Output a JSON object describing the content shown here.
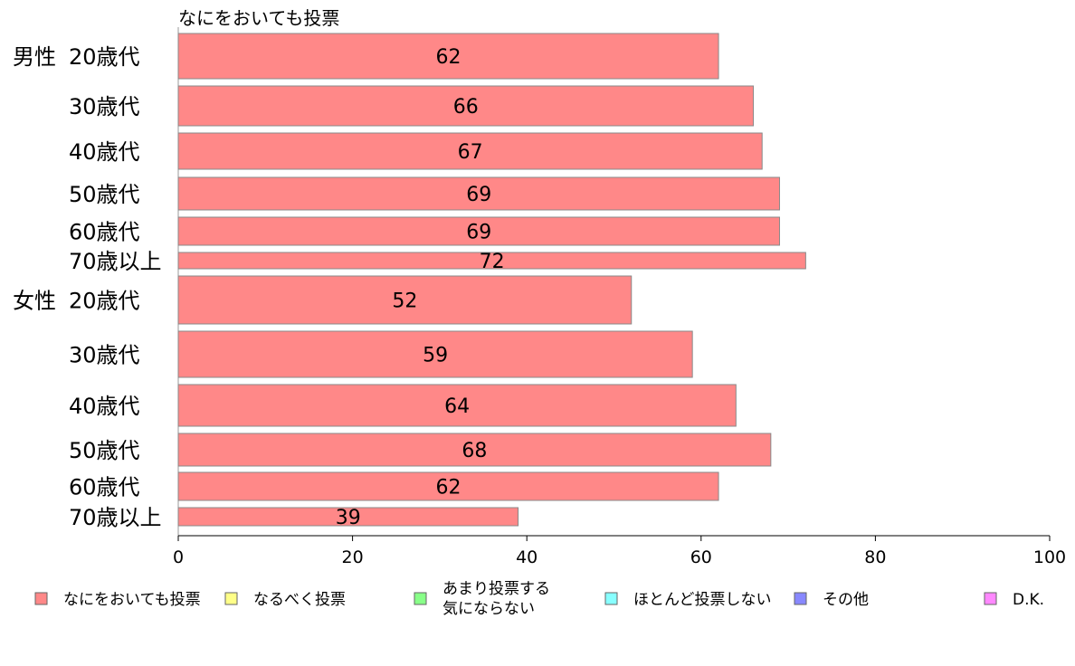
{
  "chart_data": {
    "type": "bar",
    "orientation": "horizontal",
    "title": "なにをおいても投票",
    "categories": [
      {
        "group": "男性",
        "label": "20歳代"
      },
      {
        "group": "",
        "label": "30歳代"
      },
      {
        "group": "",
        "label": "40歳代"
      },
      {
        "group": "",
        "label": "50歳代"
      },
      {
        "group": "",
        "label": "60歳代"
      },
      {
        "group": "",
        "label": "70歳以上"
      },
      {
        "group": "女性",
        "label": "20歳代"
      },
      {
        "group": "",
        "label": "30歳代"
      },
      {
        "group": "",
        "label": "40歳代"
      },
      {
        "group": "",
        "label": "50歳代"
      },
      {
        "group": "",
        "label": "60歳代"
      },
      {
        "group": "",
        "label": "70歳以上"
      }
    ],
    "series": [
      {
        "name": "なにをおいても投票",
        "color": "#ff8888",
        "values": [
          62,
          66,
          67,
          69,
          69,
          72,
          52,
          59,
          64,
          68,
          62,
          39
        ]
      }
    ],
    "xlim": [
      0,
      100
    ],
    "xticks": [
      0,
      20,
      40,
      60,
      80,
      100
    ],
    "grid": false,
    "legend_position": "bottom",
    "legend": [
      {
        "lines": [
          "なにをおいても投票"
        ],
        "color": "#ff8888"
      },
      {
        "lines": [
          "なるべく投票"
        ],
        "color": "#ffff88"
      },
      {
        "lines": [
          "あまり投票する",
          "気にならない"
        ],
        "color": "#88ff88"
      },
      {
        "lines": [
          "ほとんど投票しない"
        ],
        "color": "#88ffff"
      },
      {
        "lines": [
          "その他"
        ],
        "color": "#8888ff"
      },
      {
        "lines": [
          "D.K."
        ],
        "color": "#ff88ff"
      }
    ]
  }
}
